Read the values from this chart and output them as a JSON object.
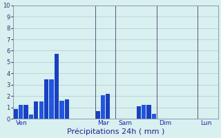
{
  "xlabel": "Précipitations 24h ( mm )",
  "background_color": "#d8f0f0",
  "bar_color_dark": "#1a40c0",
  "bar_color_light": "#2255e0",
  "grid_color": "#b0c8c8",
  "ylim": [
    0,
    10
  ],
  "yticks": [
    0,
    1,
    2,
    3,
    4,
    5,
    6,
    7,
    8,
    9,
    10
  ],
  "day_labels": [
    "Ven",
    "Mar",
    "Sam",
    "Dim",
    "Lun"
  ],
  "day_tick_positions": [
    0,
    16,
    20,
    28,
    36
  ],
  "vline_positions": [
    0,
    16,
    20,
    28,
    36
  ],
  "bar_values": [
    0.85,
    1.25,
    1.2,
    0.4,
    1.5,
    1.5,
    3.5,
    3.5,
    5.7,
    1.6,
    1.7,
    0,
    0,
    0,
    0,
    0,
    0.65,
    2.1,
    2.2,
    0,
    0,
    0,
    0,
    0,
    1.1,
    1.2,
    1.2,
    0.45,
    0,
    0,
    0,
    0,
    0,
    0,
    0,
    0,
    0,
    0,
    0,
    0
  ],
  "n_bars": 40,
  "figsize": [
    3.2,
    2.0
  ],
  "dpi": 100
}
